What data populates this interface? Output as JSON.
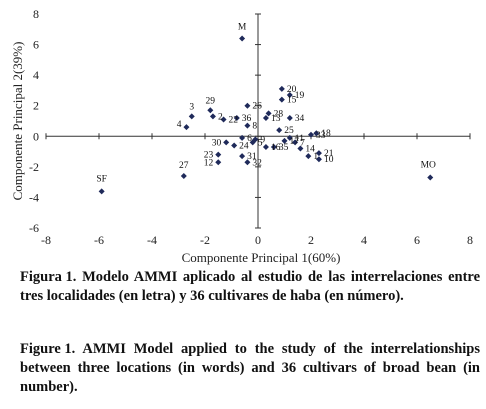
{
  "chart_data": {
    "type": "scatter",
    "xlabel": "Componente Principal 1(60%)",
    "ylabel": "Componente Principal 2(39%)",
    "xlim": [
      -8,
      8
    ],
    "ylim": [
      -6,
      8
    ],
    "xticks": [
      -8,
      -6,
      -4,
      -2,
      0,
      2,
      4,
      6,
      8
    ],
    "yticks": [
      -6,
      -4,
      -2,
      0,
      2,
      4,
      6,
      8
    ],
    "grid": false,
    "marker": "diamond",
    "marker_color": "#1f2a5a",
    "points": [
      {
        "label": "M",
        "x": -0.6,
        "y": 6.4
      },
      {
        "label": "SF",
        "x": -5.9,
        "y": -3.6
      },
      {
        "label": "MO",
        "x": 6.5,
        "y": -2.7
      },
      {
        "label": "1",
        "x": 1.9,
        "y": -1.3
      },
      {
        "label": "2",
        "x": -1.7,
        "y": 1.3
      },
      {
        "label": "3",
        "x": -2.5,
        "y": 1.3
      },
      {
        "label": "4",
        "x": -2.7,
        "y": 0.6
      },
      {
        "label": "5",
        "x": -0.2,
        "y": -0.4
      },
      {
        "label": "6",
        "x": -0.6,
        "y": -0.1
      },
      {
        "label": "7",
        "x": 1.4,
        "y": -0.4
      },
      {
        "label": "8",
        "x": -0.4,
        "y": 0.7
      },
      {
        "label": "9",
        "x": -0.1,
        "y": -0.2
      },
      {
        "label": "10",
        "x": 2.3,
        "y": -1.5
      },
      {
        "label": "11",
        "x": 1.2,
        "y": -0.1
      },
      {
        "label": "12",
        "x": -1.5,
        "y": -1.7
      },
      {
        "label": "13",
        "x": 0.3,
        "y": 1.2
      },
      {
        "label": "14",
        "x": 1.6,
        "y": -0.8
      },
      {
        "label": "15",
        "x": 0.9,
        "y": 2.4
      },
      {
        "label": "16",
        "x": 0.3,
        "y": -0.7
      },
      {
        "label": "17",
        "x": 1.0,
        "y": -0.3
      },
      {
        "label": "18",
        "x": 2.2,
        "y": 0.2
      },
      {
        "label": "19",
        "x": 1.2,
        "y": 2.7
      },
      {
        "label": "20",
        "x": 0.9,
        "y": 3.1
      },
      {
        "label": "21",
        "x": 2.3,
        "y": -1.1
      },
      {
        "label": "22",
        "x": -1.3,
        "y": 1.1
      },
      {
        "label": "23",
        "x": -1.5,
        "y": -1.2
      },
      {
        "label": "24",
        "x": -0.9,
        "y": -0.6
      },
      {
        "label": "25",
        "x": 0.8,
        "y": 0.4
      },
      {
        "label": "26",
        "x": -0.4,
        "y": 2.0
      },
      {
        "label": "27",
        "x": -2.8,
        "y": -2.6
      },
      {
        "label": "28",
        "x": 0.4,
        "y": 1.5
      },
      {
        "label": "29",
        "x": -1.8,
        "y": 1.7
      },
      {
        "label": "30",
        "x": -1.2,
        "y": -0.4
      },
      {
        "label": "31",
        "x": -0.6,
        "y": -1.3
      },
      {
        "label": "32",
        "x": -0.4,
        "y": -1.7
      },
      {
        "label": "33",
        "x": 2.0,
        "y": 0.1
      },
      {
        "label": "34",
        "x": 1.2,
        "y": 1.2
      },
      {
        "label": "35",
        "x": 0.6,
        "y": -0.7
      },
      {
        "label": "36",
        "x": -0.8,
        "y": 1.2
      }
    ]
  },
  "captions": {
    "es_lead": "Figura 1.",
    "es_rest": "Modelo AMMI aplicado al estudio de las interrelaciones entre tres localidades (en letra) y 36 cultivares de haba (en número).",
    "en_lead": "Figure 1.",
    "en_rest": "AMMI Model applied to the study of the interrelationships between three locations (in words) and 36 cultivars of broad bean (in number)."
  }
}
